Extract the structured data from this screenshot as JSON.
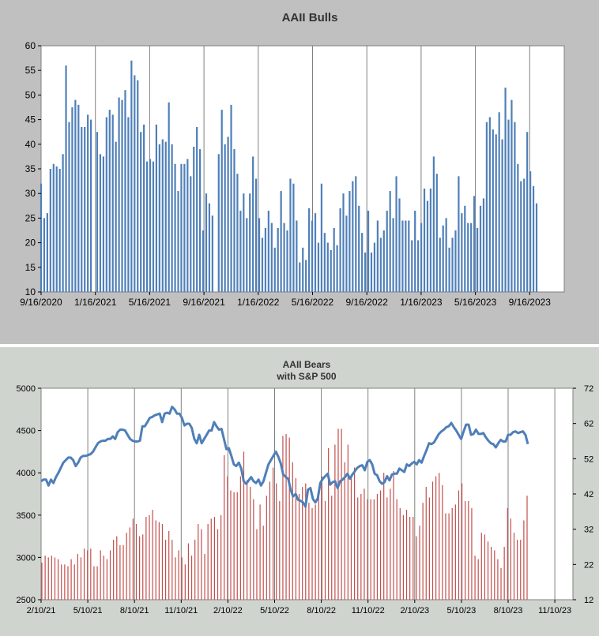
{
  "chart_data": [
    {
      "type": "bar",
      "title": "AAII Bulls",
      "xlabel": "",
      "ylabel": "",
      "ylim": [
        10,
        60
      ],
      "yticks": [
        "10",
        "15",
        "20",
        "25",
        "30",
        "35",
        "40",
        "45",
        "50",
        "55",
        "60"
      ],
      "xtick_labels": [
        "9/16/2020",
        "1/16/2021",
        "5/16/2021",
        "9/16/2021",
        "1/16/2022",
        "5/16/2022",
        "9/16/2022",
        "1/16/2023",
        "5/16/2023",
        "9/16/2023"
      ],
      "colors": {
        "bars": "#4f7fb8",
        "background": "#c0c0c0",
        "plot": "#ffffff",
        "grid": "#808080"
      },
      "series": [
        {
          "name": "AAII Bulls",
          "values": [
            32,
            25,
            26,
            35,
            36,
            35.5,
            35,
            38,
            56,
            44.5,
            47.5,
            49,
            48,
            43.5,
            43.5,
            46,
            45,
            null,
            42.5,
            38,
            37.5,
            45.5,
            47,
            46,
            40.5,
            49.5,
            49,
            51,
            45.5,
            57,
            54,
            53,
            42.5,
            44,
            36.5,
            37,
            36.5,
            44,
            40,
            41,
            40.5,
            48.5,
            40,
            36,
            30.5,
            36,
            36,
            37,
            33.5,
            39.5,
            43.5,
            39,
            22.5,
            30,
            28,
            25.5,
            null,
            38,
            47,
            40,
            41.5,
            48,
            39,
            34,
            26.5,
            30,
            25,
            30,
            37.5,
            33,
            25,
            21,
            23,
            26.5,
            24,
            19,
            23,
            30.5,
            24,
            22.5,
            33,
            32,
            24.5,
            16,
            19,
            16.5,
            27,
            24.5,
            26,
            20,
            32,
            22,
            20,
            18.5,
            23,
            19.5,
            27,
            30,
            25.5,
            30.5,
            32.5,
            33.5,
            27.5,
            22,
            18,
            26.5,
            18,
            20,
            24.5,
            21,
            22.5,
            26.5,
            30.5,
            25,
            33.5,
            29,
            24.5,
            24.5,
            24.5,
            20.5,
            26.5,
            20.5,
            24,
            31,
            28.5,
            31,
            37.5,
            34,
            21,
            23.5,
            25,
            19,
            21,
            22.5,
            33.5,
            26,
            27.5,
            24,
            24,
            29.5,
            23,
            27.5,
            29,
            44.5,
            45.5,
            43,
            42,
            46.5,
            41,
            51.5,
            45,
            49,
            44.5,
            36,
            32.5,
            33,
            42.5,
            34.5,
            31.5,
            28
          ]
        }
      ]
    },
    {
      "type": "bar",
      "title": "AAII Bears",
      "subtitle": "with S&P 500",
      "xlabel": "",
      "ylabel": "",
      "ylim": [
        12,
        72
      ],
      "y2lim": [
        2500,
        5000
      ],
      "yticks_left": [
        "2500",
        "3000",
        "3500",
        "4000",
        "4500",
        "5000"
      ],
      "yticks_right": [
        "12",
        "22",
        "32",
        "42",
        "52",
        "62",
        "72"
      ],
      "xtick_labels": [
        "2/10/21",
        "5/10/21",
        "8/10/21",
        "11/10/21",
        "2/10/22",
        "5/10/22",
        "8/10/22",
        "11/10/22",
        "2/10/23",
        "5/10/23",
        "8/10/23",
        "11/10/23"
      ],
      "colors": {
        "bars": "#c0504d",
        "line": "#4f7fb8",
        "background": "#cfd4cf",
        "plot": "#ffffff",
        "grid": "#808080"
      },
      "series": [
        {
          "name": "AAII Bears",
          "axis": "right",
          "values": [
            22.5,
            24.5,
            24,
            24.5,
            24,
            23.5,
            22,
            22,
            21.5,
            23.5,
            22,
            25,
            24,
            26.5,
            26,
            26.5,
            21.5,
            21.5,
            26,
            24.5,
            23.5,
            26,
            29,
            30,
            27.5,
            27.5,
            31,
            32.5,
            35,
            33.5,
            30,
            30.5,
            35.5,
            36,
            37.5,
            34.5,
            34,
            33.5,
            29,
            31.5,
            29,
            24,
            26,
            24,
            22,
            28,
            24.5,
            29,
            33.5,
            32,
            25,
            33.5,
            35,
            35.5,
            32,
            36,
            53,
            47,
            43,
            42.5,
            42.5,
            47,
            54,
            46,
            44,
            40.5,
            32,
            39,
            33,
            41.5,
            45.5,
            49.5,
            45,
            40,
            58.5,
            59,
            58,
            51,
            46.5,
            42,
            44,
            45,
            39.5,
            38,
            39,
            41,
            47,
            40,
            55,
            41.5,
            56,
            60.5,
            60.5,
            51,
            56,
            47.5,
            49.5,
            41,
            42,
            43.5,
            40.5,
            40.5,
            40.5,
            42,
            43,
            48,
            41,
            43.5,
            48.5,
            40.5,
            38,
            36,
            37.5,
            35.5,
            35.5,
            30,
            33,
            39.5,
            44,
            41,
            45.5,
            47,
            48,
            44.5,
            36.5,
            36.5,
            38,
            39,
            43,
            45,
            40,
            40,
            38,
            24.5,
            23.5,
            31,
            30.5,
            28.5,
            27,
            26,
            23.5,
            21,
            27,
            38,
            35,
            31,
            29,
            29,
            34.5,
            41.5
          ]
        },
        {
          "name": "S&P 500",
          "axis": "left",
          "values": [
            3900,
            3920,
            3920,
            3850,
            3920,
            3880,
            3950,
            4000,
            4060,
            4120,
            4150,
            4180,
            4180,
            4150,
            4080,
            4120,
            4180,
            4200,
            4200,
            4210,
            4220,
            4250,
            4300,
            4350,
            4370,
            4380,
            4380,
            4400,
            4400,
            4430,
            4400,
            4480,
            4510,
            4510,
            4500,
            4450,
            4400,
            4380,
            4370,
            4370,
            4380,
            4550,
            4550,
            4600,
            4650,
            4660,
            4680,
            4690,
            4700,
            4600,
            4700,
            4710,
            4700,
            4780,
            4750,
            4700,
            4700,
            4650,
            4560,
            4580,
            4580,
            4530,
            4400,
            4350,
            4450,
            4350,
            4400,
            4450,
            4500,
            4500,
            4600,
            4550,
            4510,
            4520,
            4400,
            4280,
            4290,
            4200,
            4100,
            4080,
            4120,
            4050,
            3900,
            3870,
            3910,
            3950,
            3900,
            3880,
            3920,
            3850,
            3900,
            4000,
            4100,
            4150,
            4200,
            4250,
            4190,
            4110,
            3980,
            3950,
            3930,
            3800,
            3720,
            3750,
            3680,
            3670,
            3650,
            3600,
            3800,
            3820,
            3690,
            3650,
            3700,
            3880,
            3930,
            3960,
            3990,
            3860,
            3890,
            3900,
            3820,
            3900,
            3920,
            3950,
            3990,
            3930,
            3980,
            4020,
            4060,
            4080,
            4090,
            4030,
            4130,
            4150,
            4100,
            3990,
            3970,
            3900,
            3870,
            3890,
            3960,
            3910,
            3980,
            3990,
            3990,
            4050,
            4030,
            4010,
            4100,
            4080,
            4110,
            4130,
            4100,
            4150,
            4120,
            4200,
            4270,
            4350,
            4340,
            4360,
            4410,
            4460,
            4490,
            4510,
            4540,
            4550,
            4590,
            4540,
            4500,
            4450,
            4400,
            4490,
            4570,
            4570,
            4450,
            4460,
            4510,
            4460,
            4460,
            4470,
            4420,
            4380,
            4350,
            4340,
            4300,
            4350,
            4390,
            4370,
            4370,
            4450,
            4450,
            4480,
            4490,
            4470,
            4480,
            4490,
            4450,
            4340
          ]
        }
      ]
    }
  ]
}
